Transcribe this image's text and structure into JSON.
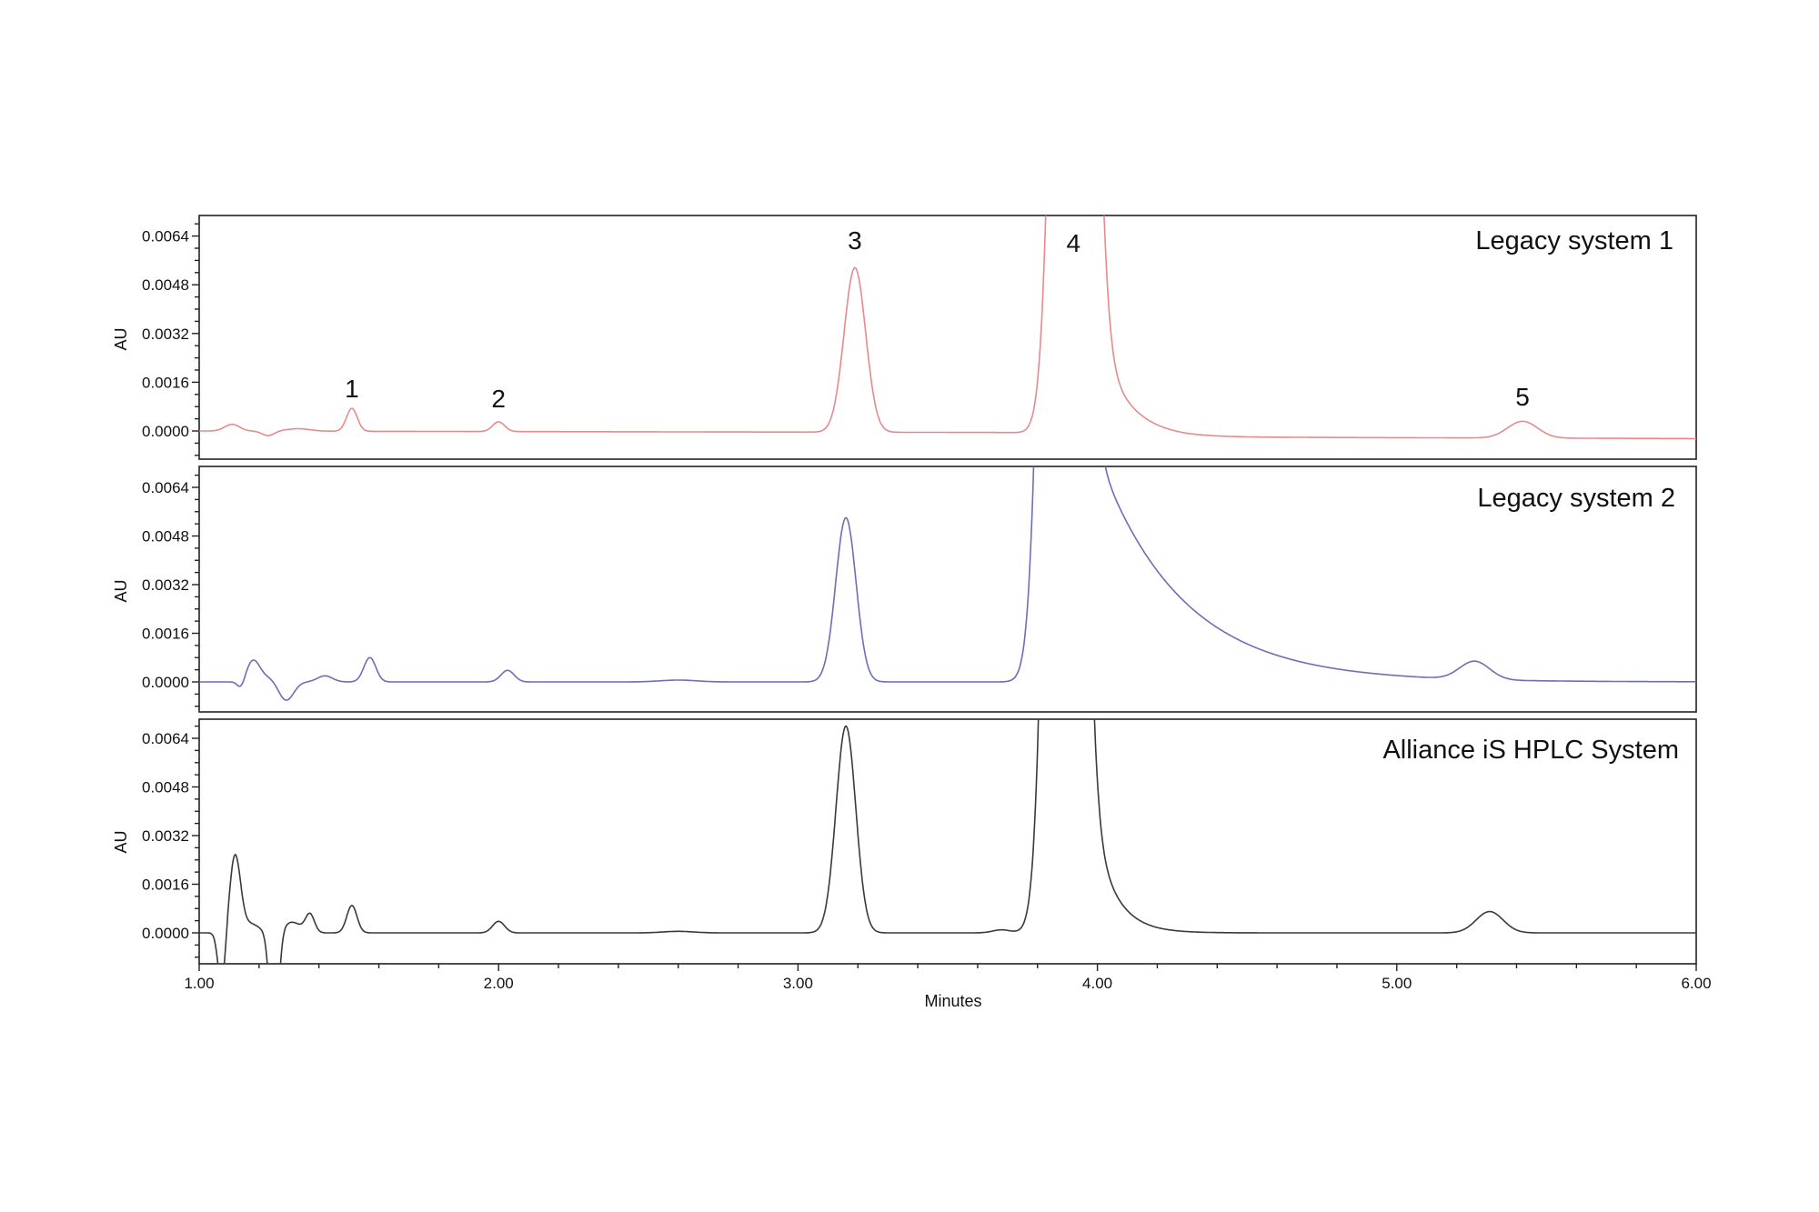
{
  "chart_data": {
    "type": "line",
    "title": "",
    "xlabel": "Minutes",
    "ylabel": "AU",
    "xlim": [
      1.0,
      6.0
    ],
    "x_major_ticks": [
      "1.00",
      "2.00",
      "3.00",
      "4.00",
      "5.00",
      "6.00"
    ],
    "x_minor_step": 0.2,
    "ylim": [
      -0.0008,
      0.0069
    ],
    "y_major_ticks": [
      "0.0000",
      "0.0016",
      "0.0032",
      "0.0048",
      "0.0064"
    ],
    "y_minor_step": 0.0004,
    "grid": false,
    "legend": "none (panel titles at top-right of each panel)",
    "peak_labels": [
      {
        "label": "1",
        "x": 1.51,
        "panel": 0
      },
      {
        "label": "2",
        "x": 2.0,
        "panel": 0
      },
      {
        "label": "3",
        "x": 3.19,
        "panel": 0
      },
      {
        "label": "4",
        "x": 3.92,
        "panel": 0
      },
      {
        "label": "5",
        "x": 5.42,
        "panel": 0
      }
    ],
    "series": [
      {
        "name": "Legacy system 1",
        "color": "#e8898b",
        "baseline": [
          [
            1.0,
            0.0
          ],
          [
            3.7,
            -5e-05
          ],
          [
            4.3,
            -0.0002
          ],
          [
            6.0,
            -0.00025
          ]
        ],
        "peaks": [
          {
            "rt": 1.11,
            "height": 0.00022,
            "width": 0.025
          },
          {
            "rt": 1.23,
            "height": -0.00015,
            "width": 0.02
          },
          {
            "rt": 1.33,
            "height": 8e-05,
            "width": 0.04
          },
          {
            "rt": 1.51,
            "height": 0.00075,
            "width": 0.018
          },
          {
            "rt": 2.0,
            "height": 0.00032,
            "width": 0.02
          },
          {
            "rt": 3.19,
            "height": 0.0054,
            "width": 0.036
          },
          {
            "rt": 3.92,
            "height": 0.06,
            "width": 0.045,
            "tail": 0.09,
            "tail_height": 0.004
          },
          {
            "rt": 5.42,
            "height": 0.00055,
            "width": 0.05
          }
        ],
        "peak_apexes": [
          {
            "peak": "1",
            "minutes": 1.51,
            "au": 0.00075
          },
          {
            "peak": "2",
            "minutes": 2.0,
            "au": 0.0003
          },
          {
            "peak": "3",
            "minutes": 3.19,
            "au": 0.0054
          },
          {
            "peak": "4",
            "minutes": 3.92,
            "au": "off-scale (>0.0069)"
          },
          {
            "peak": "5",
            "minutes": 5.42,
            "au": 0.0005
          }
        ]
      },
      {
        "name": "Legacy system 2",
        "color": "#6b6fb3",
        "baseline": [
          [
            1.0,
            0.0
          ],
          [
            6.0,
            0.0
          ]
        ],
        "peaks": [
          {
            "rt": 1.14,
            "height": -0.00025,
            "width": 0.012
          },
          {
            "rt": 1.18,
            "height": 0.00068,
            "width": 0.022
          },
          {
            "rt": 1.23,
            "height": 0.00015,
            "width": 0.03
          },
          {
            "rt": 1.29,
            "height": -0.00062,
            "width": 0.025
          },
          {
            "rt": 1.42,
            "height": 0.0002,
            "width": 0.025
          },
          {
            "rt": 1.57,
            "height": 0.0008,
            "width": 0.02
          },
          {
            "rt": 2.03,
            "height": 0.00038,
            "width": 0.022
          },
          {
            "rt": 2.6,
            "height": 6e-05,
            "width": 0.06
          },
          {
            "rt": 3.16,
            "height": 0.0054,
            "width": 0.034
          },
          {
            "rt": 3.88,
            "height": 0.06,
            "width": 0.045,
            "tail": 0.28,
            "tail_height": 0.009
          },
          {
            "rt": 5.26,
            "height": 0.0006,
            "width": 0.05
          }
        ],
        "peak_apexes": [
          {
            "peak": "1",
            "minutes": 1.57,
            "au": 0.0008
          },
          {
            "peak": "2",
            "minutes": 2.03,
            "au": 0.00038
          },
          {
            "peak": "3",
            "minutes": 3.16,
            "au": 0.0054
          },
          {
            "peak": "4",
            "minutes": 3.88,
            "au": "off-scale (>0.0069)"
          },
          {
            "peak": "5",
            "minutes": 5.26,
            "au": 0.0006
          }
        ]
      },
      {
        "name": "Alliance iS HPLC System",
        "color": "#3a3a3a",
        "baseline": [
          [
            1.0,
            0.0
          ],
          [
            6.0,
            0.0
          ]
        ],
        "peaks": [
          {
            "rt": 1.075,
            "height": -0.0018,
            "width": 0.012
          },
          {
            "rt": 1.12,
            "height": 0.0025,
            "width": 0.018
          },
          {
            "rt": 1.17,
            "height": 0.0003,
            "width": 0.03
          },
          {
            "rt": 1.25,
            "height": -0.004,
            "width": 0.014
          },
          {
            "rt": 1.31,
            "height": 0.00035,
            "width": 0.03
          },
          {
            "rt": 1.37,
            "height": 0.0006,
            "width": 0.015
          },
          {
            "rt": 1.51,
            "height": 0.0009,
            "width": 0.017
          },
          {
            "rt": 2.0,
            "height": 0.00038,
            "width": 0.02
          },
          {
            "rt": 2.6,
            "height": 5e-05,
            "width": 0.05
          },
          {
            "rt": 3.16,
            "height": 0.0068,
            "width": 0.033
          },
          {
            "rt": 3.68,
            "height": 0.0001,
            "width": 0.03
          },
          {
            "rt": 3.89,
            "height": 0.06,
            "width": 0.042,
            "tail": 0.07,
            "tail_height": 0.006
          },
          {
            "rt": 5.31,
            "height": 0.0007,
            "width": 0.045
          }
        ],
        "peak_apexes": [
          {
            "peak": "1",
            "minutes": 1.51,
            "au": 0.0009
          },
          {
            "peak": "2",
            "minutes": 2.0,
            "au": 0.0004
          },
          {
            "peak": "3",
            "minutes": 3.16,
            "au": 0.0068
          },
          {
            "peak": "4",
            "minutes": 3.89,
            "au": "off-scale (>0.0069)"
          },
          {
            "peak": "5",
            "minutes": 5.31,
            "au": 0.0007
          }
        ]
      }
    ]
  },
  "panels": [
    {
      "title": "Legacy system 1",
      "ylabel": "AU"
    },
    {
      "title": "Legacy system 2",
      "ylabel": "AU"
    },
    {
      "title": "Alliance iS HPLC System",
      "ylabel": "AU"
    }
  ],
  "x_axis": {
    "title": "Minutes"
  }
}
